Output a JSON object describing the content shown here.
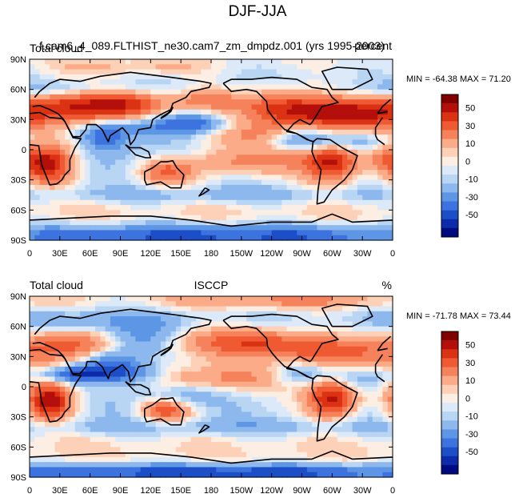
{
  "figure_title": "DJF-JJA",
  "chart_data": [
    {
      "type": "heatmap",
      "title": "f.cam6_4_089.FLTHIST_ne30.cam7_zm_dmpdz.001 (yrs 1995-2003)",
      "left_label": "Total cloud",
      "right_label": "percent",
      "stats_text": "MIN = -64.38 MAX =  71.20",
      "min": -64.38,
      "max": 71.2,
      "x_ticks": [
        "0",
        "30E",
        "60E",
        "90E",
        "120E",
        "150E",
        "180",
        "150W",
        "120W",
        "90W",
        "60W",
        "30W",
        "0"
      ],
      "y_ticks": [
        "90N",
        "60N",
        "30N",
        "0",
        "30S",
        "60S",
        "90S"
      ],
      "xlim": [
        0,
        360
      ],
      "ylim": [
        -90,
        90
      ],
      "features": [
        {
          "lon": 40,
          "lat": 42,
          "sx": 55,
          "sy": 14,
          "amp": 48
        },
        {
          "lon": 100,
          "lat": 45,
          "sx": 30,
          "sy": 12,
          "amp": 25
        },
        {
          "lon": 250,
          "lat": 45,
          "sx": 30,
          "sy": 12,
          "amp": 35
        },
        {
          "lon": 300,
          "lat": 35,
          "sx": 40,
          "sy": 10,
          "amp": 40
        },
        {
          "lon": 175,
          "lat": 50,
          "sx": 20,
          "sy": 8,
          "amp": 25
        },
        {
          "lon": 18,
          "lat": -15,
          "sx": 18,
          "sy": 14,
          "amp": 55
        },
        {
          "lon": 300,
          "lat": -12,
          "sx": 20,
          "sy": 15,
          "amp": 55
        },
        {
          "lon": 135,
          "lat": -22,
          "sx": 20,
          "sy": 10,
          "amp": 35
        },
        {
          "lon": 215,
          "lat": -12,
          "sx": 45,
          "sy": 10,
          "amp": 30
        },
        {
          "lon": 350,
          "lat": -8,
          "sx": 15,
          "sy": 10,
          "amp": 15
        },
        {
          "lon": 180,
          "lat": 15,
          "sx": 60,
          "sy": 8,
          "amp": 20
        },
        {
          "lon": 110,
          "lat": 22,
          "sx": 45,
          "sy": 10,
          "amp": -45
        },
        {
          "lon": 165,
          "lat": 25,
          "sx": 25,
          "sy": 8,
          "amp": -30
        },
        {
          "lon": 40,
          "lat": 60,
          "sx": 60,
          "sy": 6,
          "amp": -20
        },
        {
          "lon": 275,
          "lat": 10,
          "sx": 25,
          "sy": 8,
          "amp": -35
        },
        {
          "lon": 330,
          "lat": 8,
          "sx": 25,
          "sy": 8,
          "amp": -25
        },
        {
          "lon": 75,
          "lat": 12,
          "sx": 15,
          "sy": 10,
          "amp": -30
        },
        {
          "lon": 130,
          "lat": 0,
          "sx": 30,
          "sy": 12,
          "amp": -15
        },
        {
          "lon": 180,
          "lat": -45,
          "sx": 180,
          "sy": 6,
          "amp": -15
        },
        {
          "lon": 180,
          "lat": -85,
          "sx": 200,
          "sy": 8,
          "amp": -45
        },
        {
          "lon": 100,
          "lat": 82,
          "sx": 60,
          "sy": 6,
          "amp": 15
        }
      ]
    },
    {
      "type": "heatmap",
      "title": "ISCCP",
      "left_label": "Total cloud",
      "right_label": "%",
      "stats_text": "MIN = -71.78 MAX =  73.44",
      "min": -71.78,
      "max": 73.44,
      "x_ticks": [
        "0",
        "30E",
        "60E",
        "90E",
        "120E",
        "150E",
        "180",
        "150W",
        "120W",
        "90W",
        "60W",
        "30W",
        "0"
      ],
      "y_ticks": [
        "90N",
        "60N",
        "30N",
        "0",
        "30S",
        "60S",
        "90S"
      ],
      "xlim": [
        0,
        360
      ],
      "ylim": [
        -90,
        90
      ],
      "features": [
        {
          "lon": 40,
          "lat": 40,
          "sx": 45,
          "sy": 12,
          "amp": 40
        },
        {
          "lon": 20,
          "lat": -15,
          "sx": 16,
          "sy": 14,
          "amp": 60
        },
        {
          "lon": 300,
          "lat": -12,
          "sx": 18,
          "sy": 14,
          "amp": 60
        },
        {
          "lon": 135,
          "lat": -22,
          "sx": 18,
          "sy": 10,
          "amp": 45
        },
        {
          "lon": 170,
          "lat": 45,
          "sx": 40,
          "sy": 10,
          "amp": 25
        },
        {
          "lon": 235,
          "lat": 45,
          "sx": 30,
          "sy": 10,
          "amp": 30
        },
        {
          "lon": 290,
          "lat": 35,
          "sx": 30,
          "sy": 10,
          "amp": 30
        },
        {
          "lon": 200,
          "lat": 8,
          "sx": 60,
          "sy": 8,
          "amp": 20
        },
        {
          "lon": 80,
          "lat": 25,
          "sx": 25,
          "sy": 10,
          "amp": -40
        },
        {
          "lon": 110,
          "lat": 45,
          "sx": 30,
          "sy": 12,
          "amp": -35
        },
        {
          "lon": 45,
          "lat": 12,
          "sx": 25,
          "sy": 6,
          "amp": -45
        },
        {
          "lon": 100,
          "lat": 12,
          "sx": 25,
          "sy": 8,
          "amp": -30
        },
        {
          "lon": 140,
          "lat": -10,
          "sx": 25,
          "sy": 8,
          "amp": -25
        },
        {
          "lon": 270,
          "lat": 12,
          "sx": 25,
          "sy": 8,
          "amp": -30
        },
        {
          "lon": 330,
          "lat": 8,
          "sx": 20,
          "sy": 8,
          "amp": -25
        },
        {
          "lon": 60,
          "lat": 65,
          "sx": 60,
          "sy": 8,
          "amp": -15
        },
        {
          "lon": 180,
          "lat": -40,
          "sx": 200,
          "sy": 6,
          "amp": -15
        },
        {
          "lon": 180,
          "lat": -85,
          "sx": 200,
          "sy": 6,
          "amp": -50
        },
        {
          "lon": 250,
          "lat": 85,
          "sx": 90,
          "sy": 6,
          "amp": 25
        }
      ]
    }
  ],
  "colorbar": {
    "labels": [
      "50",
      "30",
      "10",
      "0",
      "-10",
      "-30",
      "-50"
    ],
    "colors": [
      "#800000",
      "#b40f0a",
      "#dc3214",
      "#f05a32",
      "#f5825a",
      "#fbab87",
      "#fdd0b8",
      "#fdeee4",
      "#dce9f8",
      "#b8d5f4",
      "#8cb8ee",
      "#5e96e6",
      "#3c73de",
      "#1c4ec8",
      "#0c2aaa",
      "#000a80"
    ]
  }
}
